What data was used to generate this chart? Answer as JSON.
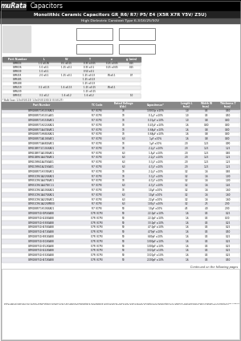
{
  "title_logo": "muRata",
  "title_category": "Capacitors",
  "main_title": "Monolithic Ceramic Capacitors GR_R6/ R7/ P5/ E4 (X5R X7R Y5V/ Z5U)",
  "subtitle": "High Dielectric Constant Type 6.3/16/25/50V",
  "dim_headers": [
    "L",
    "W",
    "T",
    "e",
    "g (min)"
  ],
  "dim_rows": [
    [
      "GRM033",
      "1.0 ±0.05",
      "0.5 ±0.05",
      "0.35 ±0.05",
      "0.25 ±0.05",
      "0.15"
    ],
    [
      "GRM036",
      "1.0 ±0.1",
      "1.25 ±0.1",
      "0.35 ±0.1",
      "0.25 ±0.05",
      "0.15"
    ],
    [
      "GRM039",
      "1.0 ±0.1",
      "",
      "0.50 ±0.1",
      "",
      ""
    ],
    [
      "GRM155",
      "2.0 ±0.1",
      "1.25 ±0.1",
      "1.25 ±0.13",
      "0.5±0.1",
      "0.7"
    ],
    [
      "GRM185",
      "",
      "",
      "1.25 ±0.13",
      "",
      ""
    ],
    [
      "GRM188",
      "",
      "",
      "1.25 ±0.13",
      "",
      ""
    ],
    [
      "GRM219",
      "3.2 ±0.15",
      "1.6 ±0.15",
      "1.25 ±0.15",
      "0.5±0.1",
      ""
    ],
    [
      "GRM239",
      "",
      "",
      "1.25 ±0.15",
      "",
      ""
    ],
    [
      "GRM31C",
      "3.2 ±0.2",
      "1.6 ±0.2",
      "1.6 ±0.2",
      "",
      "1.0"
    ]
  ],
  "dim_note": "* Bulk Case: 1.0×0.5(0.13) 1.0×0.5(0.13/0.1) (0.3/0.27)",
  "table_headers": [
    "Part Number",
    "TC Code",
    "Rated Voltage\n(Vdc)",
    "Capacitance*",
    "Length L\n(mm)",
    "Width W\n(mm)",
    "Thickness T\n(mm)"
  ],
  "table_rows": [
    [
      "GRM188R71H103KA01",
      "R7 (X7R)",
      "10",
      "10000p ±10%",
      "1.0",
      "0.5",
      "0.50"
    ],
    [
      "GRM188R71H103LA01",
      "R7 (X7R)",
      "10",
      "0.1μF ±10%",
      "1.0",
      "0.5",
      "0.50"
    ],
    [
      "GRM188R71H153KA01",
      "R7 (X7R)",
      "10",
      "0.15μF ±10%",
      "1.0",
      "0.8",
      "0.80"
    ],
    [
      "GRM188R71H224KA01",
      "R7 (X7R)",
      "10",
      "0.47μF ±10%",
      "1.6",
      "0.80",
      "0.80"
    ],
    [
      "GRM188R71A474KA01",
      "R7 (X7R)",
      "10",
      "0.68μF ±10%",
      "1.6",
      "0.8",
      "0.80"
    ],
    [
      "GRM188R71H684KA01",
      "R7 (X7R)",
      "10",
      "0.68μF ±10%",
      "1.6",
      "0.8",
      "0.80"
    ],
    [
      "GRM188R71A105KA01",
      "R7 (X7R)",
      "6.3",
      "1μF ±10%",
      "1.6",
      "0.8",
      "0.80"
    ],
    [
      "GRM188R71A682KA01",
      "R7 (X7R)",
      "10",
      "1μF ±10%",
      "2.0",
      "1.25",
      "0.90"
    ],
    [
      "GRM21BR71C104KA01",
      "R7 (X7R)",
      "10",
      "2.2μF ±10%",
      "2.0",
      "1.25",
      "1.25"
    ],
    [
      "GRM21BR71A105KA01",
      "R7 (X7R)",
      "6.3",
      "1.5μF ±10%",
      "2.0",
      "1.25",
      "0.85"
    ],
    [
      "GRM21BR61A475KA01",
      "R7 (X7R)",
      "6.3",
      "2.2μF ±10%",
      "2.0",
      "1.25",
      "1.25"
    ],
    [
      "GRM219R61A475KA01",
      "R7 (X7R)",
      "6.3",
      "3.3μF ±10%",
      "2.0",
      "1.25",
      "1.25"
    ],
    [
      "GRM219R61A225KA01",
      "R7 (X7R)",
      "6.3",
      "4.7μF ±10%",
      "2.0",
      "1.25",
      "1.25"
    ],
    [
      "GRM188R71H335KA01",
      "R7 (X7R)",
      "10",
      "2.2μF ±10%",
      "3.2",
      "1.6",
      "0.85"
    ],
    [
      "GRM31CR61A226KA01",
      "R7 (X7R)",
      "10",
      "3.3μF ±10%",
      "3.2",
      "1.6",
      "1.00"
    ],
    [
      "GRM31CR61A475KA01",
      "R7 (X7R)",
      "10",
      "4.7μF ±10%",
      "3.2",
      "1.6",
      "1.00"
    ],
    [
      "GRM31CR61A475KC11",
      "R7 (X7R)",
      "6.3",
      "4.7μF ±10%",
      "3.2",
      "1.6",
      "1.45"
    ],
    [
      "GRM31CR61A106KA01",
      "R7 (X7R)",
      "10",
      "10μF ±10%",
      "3.2",
      "1.6",
      "1.60"
    ],
    [
      "GRM31CR61A476KA01",
      "R7 (X7R)",
      "6.3",
      "10μF ±10%",
      "3.2",
      "1.6",
      "1.60"
    ],
    [
      "GRM31CR61A225KA01",
      "R7 (X7R)",
      "6.3",
      "22μF ±10%",
      "3.2",
      "1.6",
      "1.60"
    ],
    [
      "GRM31CR61A226MB00",
      "R7 (X7R)",
      "6.3",
      "100μF ±20%",
      "3.2",
      "2.5",
      "2.00"
    ],
    [
      "GRM188R71H106KA01",
      "R7 (X7R)",
      "50",
      "10μF ±10%",
      "4.5",
      "4.0",
      "2.00"
    ],
    [
      "GRM188Y51H1R5KA88",
      "X7R (X7R)",
      "50",
      "22.0pF ±10%",
      "1.6",
      "0.5",
      "0.25"
    ],
    [
      "GRM188Y51H220KA88",
      "X7R (X7R)",
      "50",
      "22.0pF ±10%",
      "1.6",
      "0.5",
      "0.30"
    ],
    [
      "GRM188Y51H330KA88",
      "X7R (X7R)",
      "50",
      "33.0pF ±10%",
      "1.6",
      "0.5",
      "0.25"
    ],
    [
      "GRM188Y51H470KA88",
      "X7R (X7R)",
      "50",
      "47.0pF ±10%",
      "1.6",
      "0.5",
      "0.25"
    ],
    [
      "GRM188Y51H471KA88",
      "X7R (X7R)",
      "50",
      "470pF ±10%",
      "1.6",
      "0.5",
      "0.50"
    ],
    [
      "GRM188Y51H681KA88",
      "X7R (X7R)",
      "50",
      "680pF ±10%",
      "1.6",
      "0.5",
      "0.25"
    ],
    [
      "GRM188Y51H102KA88",
      "X7R (X7R)",
      "50",
      "1000pF ±10%",
      "1.6",
      "0.5",
      "0.25"
    ],
    [
      "GRM188Y51H152KA88",
      "X7R (X7R)",
      "50",
      "1000pF ±10%",
      "1.6",
      "0.5",
      "0.25"
    ],
    [
      "GRM188Y51H222KA88",
      "X7R (X7R)",
      "50",
      "1500pF ±10%",
      "1.6",
      "0.5",
      "0.25"
    ],
    [
      "GRM188Y51H332KA88",
      "X7R (X7R)",
      "50",
      "1500pF ±10%",
      "1.6",
      "0.5",
      "0.25"
    ],
    [
      "GRM188Y51H472KA88",
      "X7R (X7R)",
      "50",
      "2200pF ±10%",
      "1.6",
      "0.5",
      "0.50"
    ]
  ],
  "footer_note": "Continued on the following pages",
  "bottom_note": "Note: This catalog has only typical specifications because there are various specifications per individual part numbers. Therefore, please ask us separately for specifications for individual part numbers before ordering. All products in this catalog are designed and rated for standard use. Please contact us before using these products in applications that require special quality and reliability or applications where use could directly endanger human life or cause harm to property.",
  "bg_color": "#ffffff",
  "header_bar_color": "#000000",
  "title_bar_color": "#222222",
  "subtitle_bar_color": "#555555",
  "table_header_bg": "#888888",
  "alt_row_bg": "#e8e8f0",
  "border_color": "#aaaaaa"
}
